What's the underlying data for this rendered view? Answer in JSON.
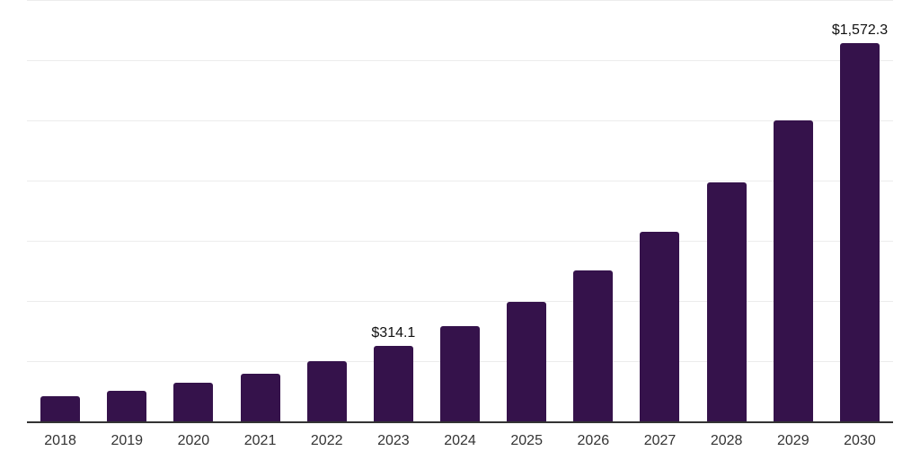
{
  "chart_data": {
    "type": "bar",
    "title": "",
    "xlabel": "",
    "ylabel": "",
    "ylim": [
      0,
      1750
    ],
    "gridline_step": 250,
    "gridline_count": 7,
    "grid": true,
    "legend_position": "none",
    "categories": [
      "2018",
      "2019",
      "2020",
      "2021",
      "2022",
      "2023",
      "2024",
      "2025",
      "2026",
      "2027",
      "2028",
      "2029",
      "2030"
    ],
    "values": [
      103,
      128,
      161,
      198,
      250,
      314.1,
      395.4,
      497.6,
      626.4,
      788.5,
      992.5,
      1249.3,
      1572.3
    ],
    "data_labels": [
      "",
      "",
      "",
      "",
      "",
      "$314.1",
      "",
      "",
      "",
      "",
      "",
      "",
      "$1,572.3"
    ]
  },
  "colors": {
    "bar": "#35124b",
    "gridline": "#ececec",
    "axis_line": "#333333",
    "tick_label": "#333333",
    "data_label": "#111111",
    "background": "#ffffff"
  }
}
